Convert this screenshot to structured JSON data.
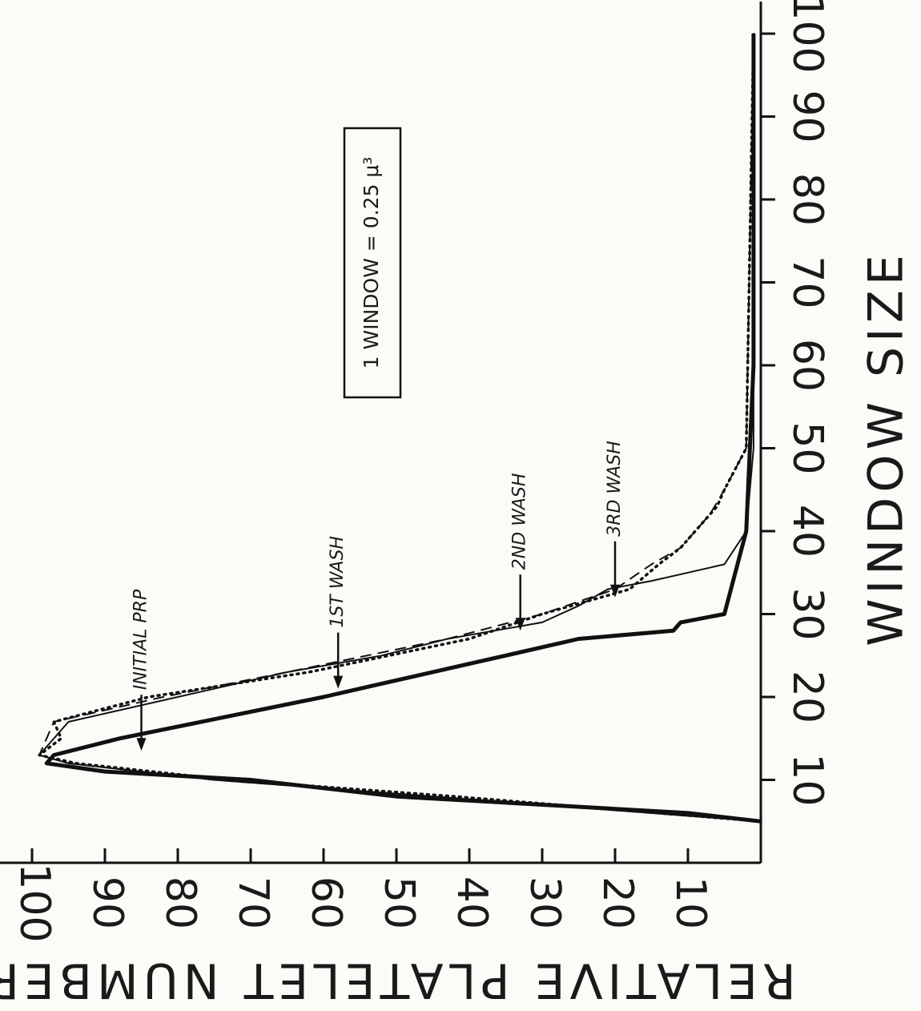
{
  "chart_data": {
    "type": "line",
    "orientation": "rotated 90° clockwise",
    "xlabel": "WINDOW SIZE",
    "ylabel": "RELATIVE PLATELET NUMBER",
    "xlim": [
      0,
      100
    ],
    "ylim": [
      0,
      100
    ],
    "x_ticks": [
      10,
      20,
      30,
      40,
      50,
      60,
      70,
      80,
      90,
      100
    ],
    "y_ticks": [
      10,
      20,
      30,
      40,
      50,
      60,
      70,
      80,
      90,
      100
    ],
    "grid": false,
    "legend": "none (curves labeled by arrows)",
    "box_label": "1 WINDOW = 0.25 μ³",
    "annotations": [
      {
        "text": "INITIAL PRP",
        "x": 13.5,
        "y": 85
      },
      {
        "text": "1ST WASH",
        "x": 21,
        "y": 58
      },
      {
        "text": "2ND WASH",
        "x": 28,
        "y": 33
      },
      {
        "text": "3RD WASH",
        "x": 32,
        "y": 20
      }
    ],
    "series": [
      {
        "name": "INITIAL PRP",
        "style": "solid-thick",
        "x": [
          5,
          6,
          7,
          8,
          10,
          11,
          12,
          13,
          15,
          20,
          21,
          24,
          25,
          27,
          28,
          29,
          30,
          40,
          60,
          100
        ],
        "y": [
          0,
          10,
          30,
          50,
          70,
          90,
          98,
          97,
          88,
          60,
          55,
          40,
          35,
          25,
          12,
          11,
          5,
          2,
          1,
          1
        ]
      },
      {
        "name": "1ST WASH",
        "style": "solid-thin",
        "x": [
          5,
          6,
          8,
          10,
          12,
          13,
          14,
          17,
          20,
          22,
          23,
          25,
          27,
          29,
          31,
          33,
          34,
          35,
          36,
          40,
          50,
          100
        ],
        "y": [
          0,
          15,
          45,
          75,
          95,
          99,
          98,
          95,
          80,
          70,
          65,
          52,
          43,
          30,
          25,
          21,
          15,
          10,
          5,
          2,
          1,
          1
        ]
      },
      {
        "name": "2ND WASH",
        "style": "dashed",
        "x": [
          5,
          6,
          8,
          10,
          12,
          13,
          15,
          17,
          20,
          23,
          27,
          30,
          33,
          36,
          38,
          40,
          42,
          45,
          50,
          100
        ],
        "y": [
          0,
          15,
          45,
          75,
          95,
          99,
          98,
          97,
          82,
          65,
          43,
          30,
          20,
          15,
          11,
          9,
          7,
          5,
          2,
          1
        ]
      },
      {
        "name": "3RD WASH",
        "style": "dotted",
        "x": [
          5,
          6,
          8,
          10,
          12,
          13,
          15,
          17,
          20,
          23,
          27,
          30,
          33,
          36,
          38,
          40,
          43,
          45,
          50,
          100
        ],
        "y": [
          0,
          14,
          42,
          73,
          94,
          99,
          96,
          97,
          84,
          62,
          40,
          30,
          18,
          14,
          11,
          9,
          6,
          5,
          2,
          1
        ]
      }
    ]
  }
}
